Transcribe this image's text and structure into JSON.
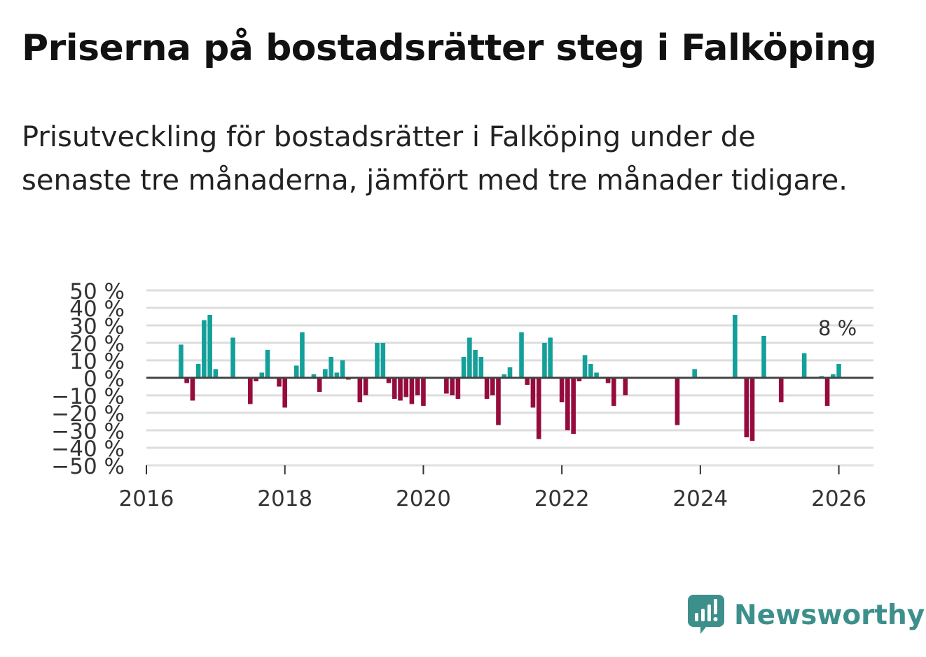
{
  "title": "Priserna på bostadsrätter steg i Falköping",
  "subtitle": "Prisutveckling för bostadsrätter i Falköping under de senaste tre månaderna, jämfört med tre månader tidigare.",
  "brand": {
    "name": "Newsworthy"
  },
  "colors": {
    "positive": "#14a09a",
    "negative": "#960b3d",
    "grid": "#dddddd",
    "zero_line": "#444444",
    "brand": "#3d8f8c"
  },
  "chart_data": {
    "type": "bar",
    "title": "Priserna på bostadsrätter steg i Falköping",
    "xlabel": "",
    "ylabel": "",
    "ylim": [
      -50,
      50
    ],
    "xlim": [
      2016,
      2026.5
    ],
    "y_ticks": [
      {
        "value": 50,
        "label": "50 %"
      },
      {
        "value": 40,
        "label": "40 %"
      },
      {
        "value": 30,
        "label": "30 %"
      },
      {
        "value": 20,
        "label": "20 %"
      },
      {
        "value": 10,
        "label": "10 %"
      },
      {
        "value": 0,
        "label": "0 %"
      },
      {
        "value": -10,
        "label": "−10 %"
      },
      {
        "value": -20,
        "label": "−20 %"
      },
      {
        "value": -30,
        "label": "−30 %"
      },
      {
        "value": -40,
        "label": "−40 %"
      },
      {
        "value": -50,
        "label": "−50 %"
      }
    ],
    "x_ticks": [
      {
        "value": 2016,
        "label": "2016"
      },
      {
        "value": 2018,
        "label": "2018"
      },
      {
        "value": 2020,
        "label": "2020"
      },
      {
        "value": 2022,
        "label": "2022"
      },
      {
        "value": 2024,
        "label": "2024"
      },
      {
        "value": 2026,
        "label": "2026"
      }
    ],
    "grid": true,
    "annotation": {
      "label": "8 %",
      "x": 2026.0,
      "y": 8
    },
    "series": [
      {
        "name": "Prisutveckling",
        "points": [
          {
            "x": 2016.5,
            "y": 19
          },
          {
            "x": 2016.583,
            "y": -3
          },
          {
            "x": 2016.667,
            "y": -13
          },
          {
            "x": 2016.75,
            "y": 8
          },
          {
            "x": 2016.833,
            "y": 33
          },
          {
            "x": 2016.917,
            "y": 36
          },
          {
            "x": 2017.0,
            "y": 5
          },
          {
            "x": 2017.25,
            "y": 23
          },
          {
            "x": 2017.5,
            "y": -15
          },
          {
            "x": 2017.583,
            "y": -2
          },
          {
            "x": 2017.667,
            "y": 3
          },
          {
            "x": 2017.75,
            "y": 16
          },
          {
            "x": 2017.917,
            "y": -5
          },
          {
            "x": 2018.0,
            "y": -17
          },
          {
            "x": 2018.167,
            "y": 7
          },
          {
            "x": 2018.25,
            "y": 26
          },
          {
            "x": 2018.417,
            "y": 2
          },
          {
            "x": 2018.5,
            "y": -8
          },
          {
            "x": 2018.583,
            "y": 5
          },
          {
            "x": 2018.667,
            "y": 12
          },
          {
            "x": 2018.75,
            "y": 3
          },
          {
            "x": 2018.833,
            "y": 10
          },
          {
            "x": 2018.917,
            "y": -1
          },
          {
            "x": 2019.083,
            "y": -14
          },
          {
            "x": 2019.167,
            "y": -10
          },
          {
            "x": 2019.333,
            "y": 20
          },
          {
            "x": 2019.417,
            "y": 20
          },
          {
            "x": 2019.5,
            "y": -3
          },
          {
            "x": 2019.583,
            "y": -12
          },
          {
            "x": 2019.667,
            "y": -13
          },
          {
            "x": 2019.75,
            "y": -11
          },
          {
            "x": 2019.833,
            "y": -15
          },
          {
            "x": 2019.917,
            "y": -10
          },
          {
            "x": 2020.0,
            "y": -16
          },
          {
            "x": 2020.333,
            "y": -9
          },
          {
            "x": 2020.417,
            "y": -10
          },
          {
            "x": 2020.5,
            "y": -12
          },
          {
            "x": 2020.583,
            "y": 12
          },
          {
            "x": 2020.667,
            "y": 23
          },
          {
            "x": 2020.75,
            "y": 16
          },
          {
            "x": 2020.833,
            "y": 12
          },
          {
            "x": 2020.917,
            "y": -12
          },
          {
            "x": 2021.0,
            "y": -10
          },
          {
            "x": 2021.083,
            "y": -27
          },
          {
            "x": 2021.167,
            "y": 2
          },
          {
            "x": 2021.25,
            "y": 6
          },
          {
            "x": 2021.417,
            "y": 26
          },
          {
            "x": 2021.5,
            "y": -4
          },
          {
            "x": 2021.583,
            "y": -17
          },
          {
            "x": 2021.667,
            "y": -35
          },
          {
            "x": 2021.75,
            "y": 20
          },
          {
            "x": 2021.833,
            "y": 23
          },
          {
            "x": 2022.0,
            "y": -14
          },
          {
            "x": 2022.083,
            "y": -30
          },
          {
            "x": 2022.167,
            "y": -32
          },
          {
            "x": 2022.25,
            "y": -2
          },
          {
            "x": 2022.333,
            "y": 13
          },
          {
            "x": 2022.417,
            "y": 8
          },
          {
            "x": 2022.5,
            "y": 3
          },
          {
            "x": 2022.667,
            "y": -3
          },
          {
            "x": 2022.75,
            "y": -16
          },
          {
            "x": 2022.917,
            "y": -10
          },
          {
            "x": 2023.667,
            "y": -27
          },
          {
            "x": 2023.917,
            "y": 5
          },
          {
            "x": 2024.5,
            "y": 36
          },
          {
            "x": 2024.667,
            "y": -34
          },
          {
            "x": 2024.75,
            "y": -36
          },
          {
            "x": 2024.917,
            "y": 24
          },
          {
            "x": 2025.167,
            "y": -14
          },
          {
            "x": 2025.5,
            "y": 14
          },
          {
            "x": 2025.75,
            "y": 1
          },
          {
            "x": 2025.833,
            "y": -16
          },
          {
            "x": 2025.917,
            "y": 2
          },
          {
            "x": 2026.0,
            "y": 8
          }
        ]
      }
    ]
  }
}
